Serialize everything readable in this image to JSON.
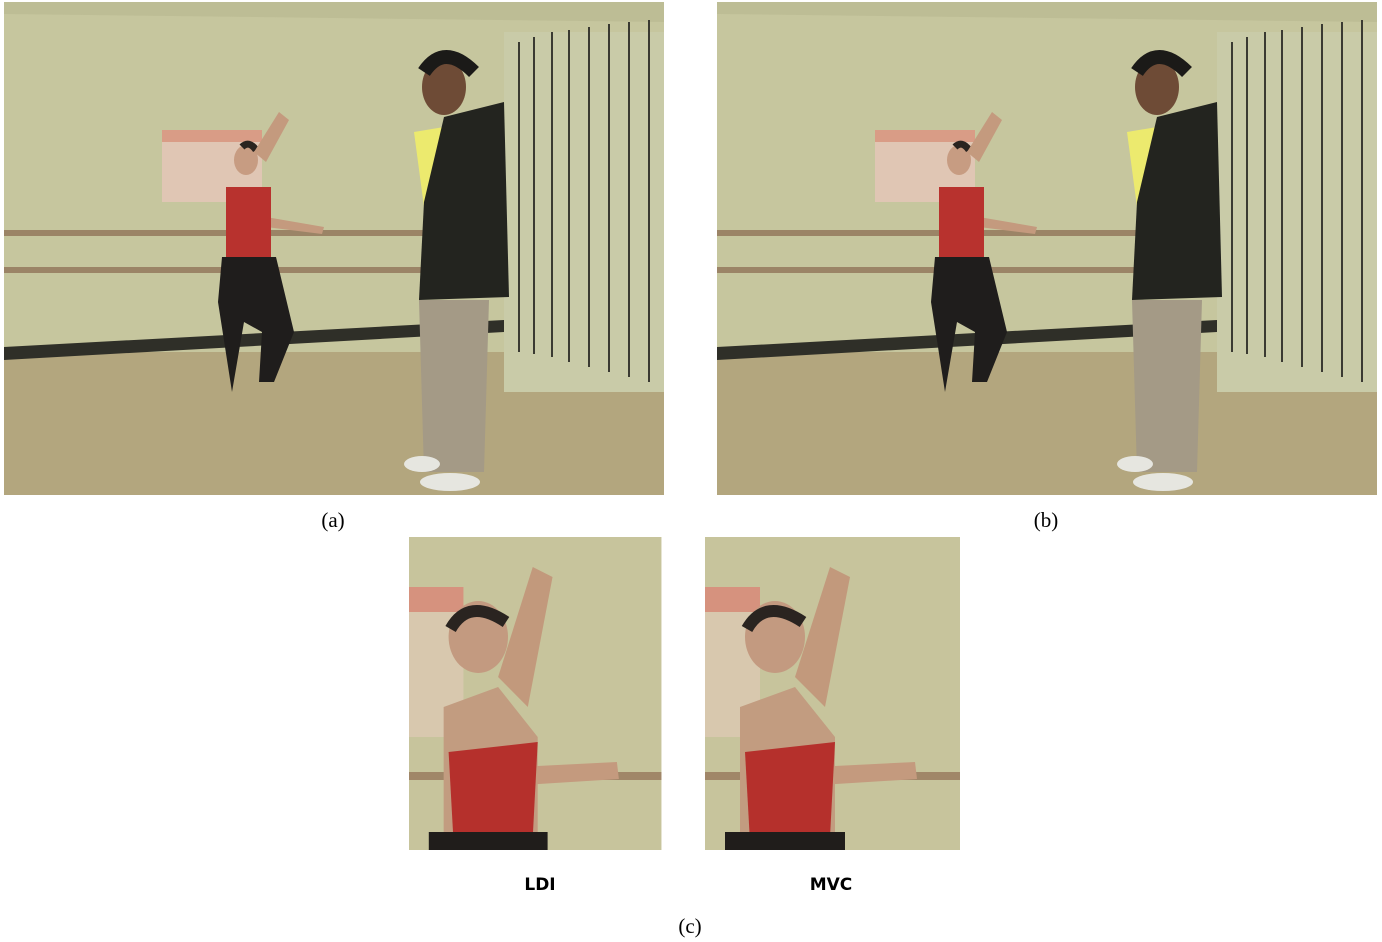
{
  "figure": {
    "panels": [
      {
        "caption": "(a)"
      },
      {
        "caption": "(b)"
      }
    ],
    "crops": [
      {
        "label": "LDI"
      },
      {
        "label": "MVC"
      }
    ],
    "caption": "(c)"
  }
}
